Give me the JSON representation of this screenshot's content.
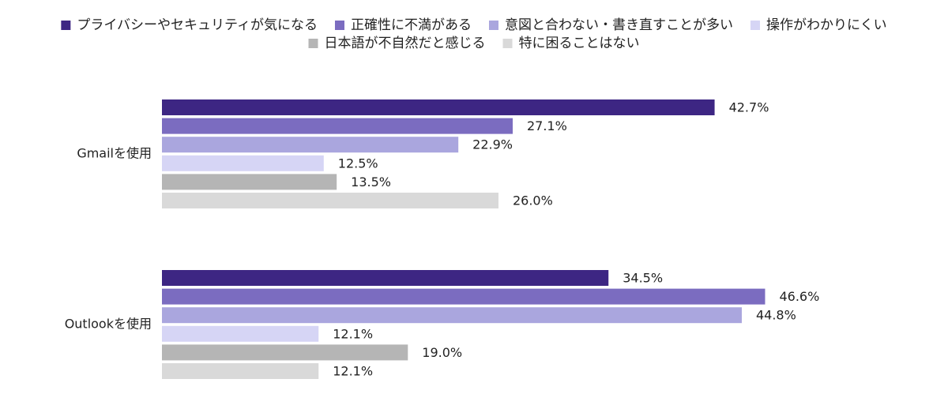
{
  "chart_data": {
    "type": "bar",
    "orientation": "horizontal",
    "categories": [
      "Gmailを使用",
      "Outlookを使用"
    ],
    "series": [
      {
        "name": "プライバシーやセキュリティが気になる",
        "color": "#3d2683",
        "values": [
          42.7,
          34.5
        ],
        "value_labels": [
          "42.7%",
          "34.5%"
        ]
      },
      {
        "name": "正確性に不満がある",
        "color": "#7b6cc0",
        "values": [
          27.1,
          46.6
        ],
        "value_labels": [
          "27.1%",
          "46.6%"
        ]
      },
      {
        "name": "意図と合わない・書き直すことが多い",
        "color": "#aaa6de",
        "values": [
          22.9,
          44.8
        ],
        "value_labels": [
          "22.9%",
          "44.8%"
        ]
      },
      {
        "name": "操作がわかりにくい",
        "color": "#d6d5f5",
        "values": [
          12.5,
          12.1
        ],
        "value_labels": [
          "12.5%",
          "12.1%"
        ]
      },
      {
        "name": "日本語が不自然だと感じる",
        "color": "#b5b5b5",
        "values": [
          13.5,
          19.0
        ],
        "value_labels": [
          "13.5%",
          "19.0%"
        ]
      },
      {
        "name": "特に困ることはない",
        "color": "#d9d9d9",
        "values": [
          26.0,
          12.1
        ],
        "value_labels": [
          "26.0%",
          "12.1%"
        ]
      }
    ],
    "xlim": [
      0,
      60
    ]
  }
}
